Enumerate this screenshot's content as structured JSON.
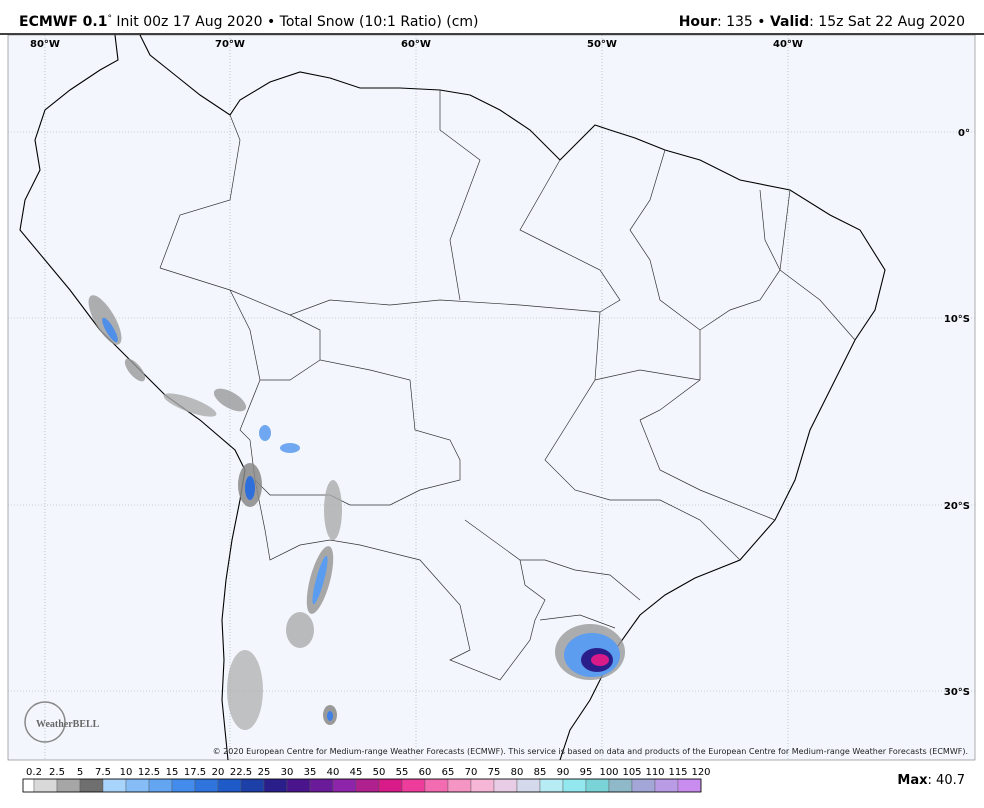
{
  "header": {
    "model": "ECMWF 0.1",
    "degree": "°",
    "run": " Init 00z 17 Aug 2020 • Total Snow (10:1 Ratio) (cm)",
    "hour_label": "Hour",
    "hour_text": ": 135 • ",
    "valid_label": "Valid",
    "valid_text": ": 15z Sat 22 Aug 2020"
  },
  "map": {
    "longitudes": [
      "80°W",
      "70°W",
      "60°W",
      "50°W",
      "40°W"
    ],
    "latitudes": [
      "0°",
      "10°S",
      "20°S",
      "30°S"
    ],
    "copyright": "© 2020 European Centre for Medium-range Weather Forecasts (ECMWF). This service is based on data and products of the European Centre for Medium-range Weather Forecasts (ECMWF).",
    "logo": "WeatherBELL"
  },
  "legend": {
    "labels": [
      "0.2",
      "2.5",
      "5",
      "7.5",
      "10",
      "12.5",
      "15",
      "17.5",
      "20",
      "22.5",
      "25",
      "30",
      "35",
      "40",
      "45",
      "50",
      "55",
      "60",
      "65",
      "70",
      "75",
      "80",
      "85",
      "90",
      "95",
      "100",
      "105",
      "110",
      "115",
      "120"
    ],
    "colors": [
      "#ffffff",
      "#d9d9d9",
      "#a6a6a6",
      "#6f6f6f",
      "#a8d4fb",
      "#86bdf7",
      "#64a5f2",
      "#438ceb",
      "#2f74dd",
      "#1f5bc8",
      "#1c3fa8",
      "#2a1f8a",
      "#4a148c",
      "#6a1b9a",
      "#8e24aa",
      "#b0208f",
      "#d81b88",
      "#ee3c9a",
      "#f36bb0",
      "#f595c4",
      "#f6b7d6",
      "#e9cde6",
      "#d5d9ec",
      "#b8ecf4",
      "#92e8ee",
      "#7ad3d6",
      "#8fb9c9",
      "#a3a7d8",
      "#b99be6",
      "#c98df0"
    ]
  },
  "footer": {
    "max_label": "Max",
    "max_text": ": 40.7"
  }
}
